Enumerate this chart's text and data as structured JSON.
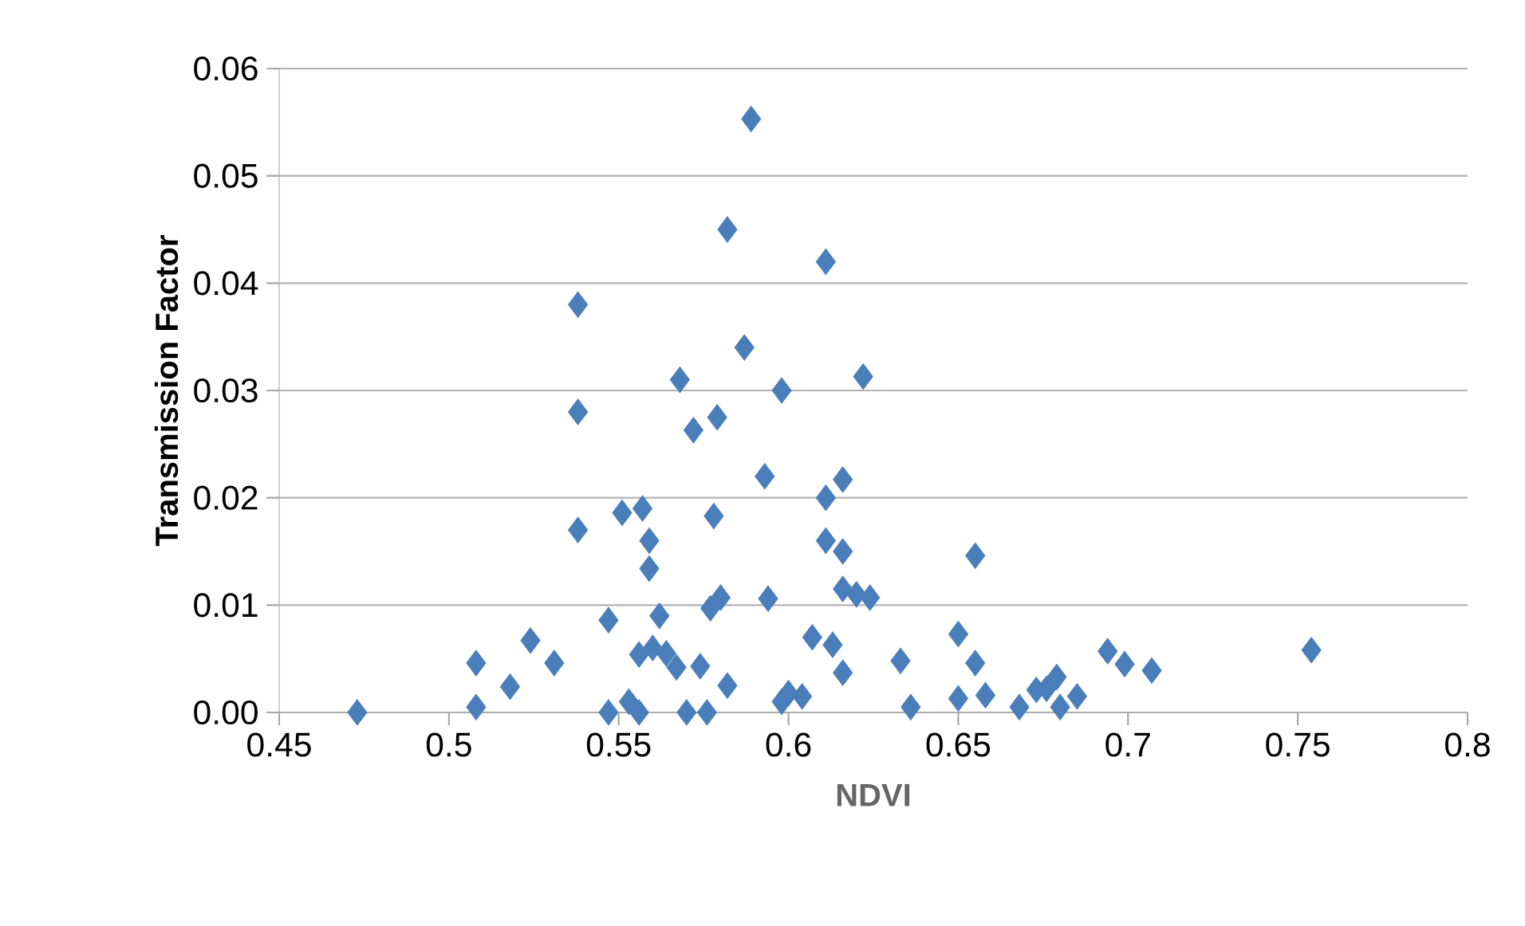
{
  "chart_data": {
    "type": "scatter",
    "xlabel": "NDVI",
    "ylabel": "Transmission Factor",
    "xlim": [
      0.45,
      0.8
    ],
    "xticks": [
      0.45,
      0.5,
      0.55,
      0.6,
      0.65,
      0.7,
      0.75,
      0.8
    ],
    "ylim": [
      0,
      0.06
    ],
    "yticks": [
      {
        "value": 0,
        "label": "0.00"
      },
      {
        "value": 0.01,
        "label": "0.01"
      },
      {
        "value": 0.02,
        "label": "0.02"
      },
      {
        "value": 0.03,
        "label": "0.03"
      },
      {
        "value": 0.04,
        "label": "0.04"
      },
      {
        "value": 0.05,
        "label": "0.05"
      },
      {
        "value": 0.06,
        "label": "0.06"
      }
    ],
    "grid": "y",
    "marker": "diamond",
    "series": [
      {
        "color": "#4a7ebb",
        "x": [
          0.473,
          0.508,
          0.508,
          0.518,
          0.524,
          0.531,
          0.538,
          0.538,
          0.538,
          0.547,
          0.547,
          0.551,
          0.553,
          0.557,
          0.556,
          0.559,
          0.559,
          0.562,
          0.56,
          0.564,
          0.567,
          0.556,
          0.568,
          0.572,
          0.574,
          0.57,
          0.577,
          0.58,
          0.579,
          0.578,
          0.576,
          0.582,
          0.582,
          0.587,
          0.589,
          0.593,
          0.594,
          0.598,
          0.598,
          0.6,
          0.604,
          0.607,
          0.611,
          0.611,
          0.611,
          0.613,
          0.616,
          0.616,
          0.616,
          0.616,
          0.622,
          0.62,
          0.624,
          0.633,
          0.636,
          0.65,
          0.65,
          0.655,
          0.655,
          0.658,
          0.668,
          0.673,
          0.676,
          0.679,
          0.68,
          0.685,
          0.694,
          0.699,
          0.707,
          0.754
        ],
        "values": [
          0,
          0.0005,
          0.0046,
          0.0024,
          0.0067,
          0.0046,
          0.038,
          0.028,
          0.017,
          0.0086,
          0,
          0.0186,
          0.001,
          0.019,
          0.0054,
          0.016,
          0.0134,
          0.009,
          0.006,
          0.0055,
          0.0042,
          0,
          0.031,
          0.0263,
          0.0043,
          0,
          0.0097,
          0.0107,
          0.0275,
          0.0183,
          0,
          0.0025,
          0.045,
          0.034,
          0.0553,
          0.022,
          0.0106,
          0.03,
          0.001,
          0.0018,
          0.0015,
          0.007,
          0.042,
          0.02,
          0.016,
          0.0063,
          0.0217,
          0.015,
          0.0115,
          0.0037,
          0.0313,
          0.011,
          0.0107,
          0.0048,
          0.0005,
          0.0013,
          0.0073,
          0.0146,
          0.0046,
          0.0016,
          0.0005,
          0.0021,
          0.0022,
          0.0033,
          0.0005,
          0.0015,
          0.0057,
          0.0045,
          0.0039,
          0.0058
        ]
      }
    ]
  }
}
